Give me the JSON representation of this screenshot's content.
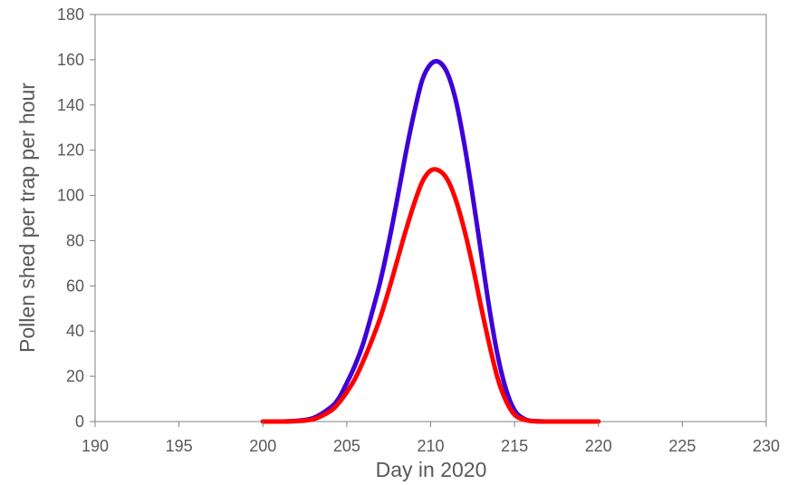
{
  "chart_data": {
    "type": "line",
    "title": "",
    "xlabel": "Day in 2020",
    "ylabel": "Pollen shed per trap per hour",
    "xlim": [
      190,
      230
    ],
    "ylim": [
      0,
      180
    ],
    "xticks": [
      "190",
      "195",
      "200",
      "205",
      "210",
      "215",
      "220",
      "225",
      "230"
    ],
    "yticks": [
      "0",
      "20",
      "40",
      "60",
      "80",
      "100",
      "120",
      "140",
      "160",
      "180"
    ],
    "grid": false,
    "legend": "none",
    "series": [
      {
        "color": "#3f00d8",
        "x": [
          200,
          201,
          202,
          203,
          204,
          204.5,
          205,
          205.5,
          206,
          206.5,
          207,
          207.5,
          208,
          208.5,
          209,
          209.5,
          210,
          210.5,
          211,
          211.5,
          212,
          212.5,
          213,
          213.5,
          214,
          214.5,
          215,
          215.5,
          216,
          217,
          218,
          219,
          220
        ],
        "y": [
          0,
          0,
          0.3,
          1.5,
          6,
          10,
          17,
          25,
          35,
          48,
          62,
          79,
          98,
          118,
          136,
          151,
          158,
          159,
          154,
          142,
          123,
          100,
          75,
          50,
          29,
          14,
          5,
          1.5,
          0.3,
          0,
          0,
          0,
          0
        ]
      },
      {
        "color": "#ff0000",
        "x": [
          200,
          201,
          202,
          203,
          204,
          204.5,
          205,
          205.5,
          206,
          206.5,
          207,
          207.5,
          208,
          208.5,
          209,
          209.5,
          210,
          210.5,
          211,
          211.5,
          212,
          212.5,
          213,
          213.5,
          214,
          214.5,
          215,
          215.5,
          216,
          217,
          218,
          219,
          220
        ],
        "y": [
          0,
          0,
          0.2,
          1,
          4.5,
          8,
          13,
          19,
          27,
          36,
          46,
          58,
          71,
          84,
          96,
          106,
          111,
          111,
          107,
          98,
          85,
          69,
          51,
          34,
          19,
          9,
          3,
          1,
          0.2,
          0,
          0,
          0,
          0
        ]
      }
    ]
  }
}
